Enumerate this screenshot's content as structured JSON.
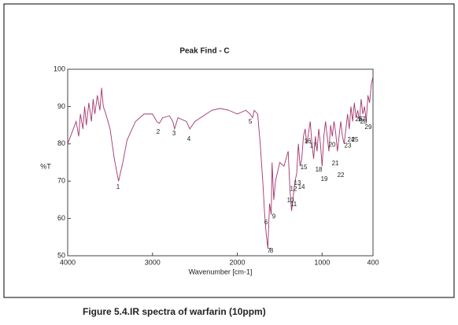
{
  "chart_data": {
    "type": "line",
    "title": "Peak Find - C",
    "x_label": "Wavenumber [cm-1]",
    "y_label": "%T",
    "caption": "Figure 5.4.IR spectra of warfarin (10ppm)",
    "xlim": [
      4000,
      400
    ],
    "ylim": [
      50,
      100
    ],
    "xticks": [
      4000,
      3000,
      2000,
      1000,
      400
    ],
    "yticks": [
      50,
      60,
      70,
      80,
      90,
      100
    ],
    "series": [
      {
        "color": "#a3346e",
        "x": [
          4000,
          3950,
          3900,
          3870,
          3850,
          3820,
          3800,
          3780,
          3750,
          3720,
          3700,
          3680,
          3650,
          3620,
          3600,
          3580,
          3550,
          3500,
          3450,
          3400,
          3350,
          3300,
          3200,
          3100,
          3000,
          2950,
          2920,
          2880,
          2800,
          2760,
          2740,
          2700,
          2600,
          2560,
          2500,
          2400,
          2300,
          2200,
          2100,
          2000,
          1900,
          1850,
          1820,
          1800,
          1760,
          1730,
          1700,
          1680,
          1660,
          1640,
          1630,
          1620,
          1600,
          1590,
          1570,
          1550,
          1500,
          1450,
          1400,
          1380,
          1360,
          1340,
          1320,
          1300,
          1280,
          1260,
          1240,
          1220,
          1200,
          1180,
          1160,
          1140,
          1120,
          1100,
          1080,
          1060,
          1040,
          1020,
          1000,
          980,
          960,
          940,
          920,
          900,
          880,
          860,
          840,
          820,
          800,
          780,
          760,
          740,
          720,
          700,
          680,
          660,
          640,
          620,
          600,
          580,
          560,
          540,
          520,
          500,
          480,
          460,
          440,
          420,
          400
        ],
        "values": [
          80,
          83,
          86,
          82,
          88,
          84,
          90,
          85,
          91,
          86,
          92,
          88,
          93,
          89,
          95,
          90,
          88,
          84,
          76,
          70,
          75,
          81,
          86,
          88,
          88,
          86,
          85.5,
          87,
          87.5,
          86,
          84,
          87,
          86,
          84,
          86,
          87.5,
          89,
          89.5,
          89,
          88,
          89,
          88,
          87,
          89,
          88,
          80,
          70,
          62,
          56,
          52,
          58,
          64,
          61,
          75,
          65,
          70,
          75,
          74,
          78,
          68,
          62,
          66,
          70,
          72,
          80,
          74,
          76,
          82,
          84,
          80,
          83,
          86,
          80,
          76,
          82,
          78,
          84,
          80,
          74,
          82,
          86,
          82,
          78,
          85,
          82,
          86,
          83,
          78,
          82,
          86,
          82,
          80,
          84,
          88,
          84,
          90,
          86,
          91,
          87,
          89,
          86,
          92,
          88,
          90,
          86,
          93,
          91,
          96,
          98
        ]
      }
    ],
    "annotations": [
      {
        "label": "1",
        "x": 3406,
        "y": 68.4
      },
      {
        "label": "2",
        "x": 2933,
        "y": 83.1
      },
      {
        "label": "3",
        "x": 2747,
        "y": 82.7
      },
      {
        "label": "4",
        "x": 2571,
        "y": 81.2
      },
      {
        "label": "5",
        "x": 1847,
        "y": 85.9
      },
      {
        "label": "6",
        "x": 1662,
        "y": 58.9
      },
      {
        "label": "7",
        "x": 1625,
        "y": 51.3
      },
      {
        "label": "8",
        "x": 1597,
        "y": 51.3
      },
      {
        "label": "9",
        "x": 1569,
        "y": 60.5
      },
      {
        "label": "10",
        "x": 1374,
        "y": 64.8
      },
      {
        "label": "11",
        "x": 1337,
        "y": 63.7
      },
      {
        "label": "12",
        "x": 1337,
        "y": 67.9
      },
      {
        "label": "13",
        "x": 1291,
        "y": 69.4
      },
      {
        "label": "14",
        "x": 1244,
        "y": 68.4
      },
      {
        "label": "15",
        "x": 1216,
        "y": 73.6
      },
      {
        "label": "16",
        "x": 1170,
        "y": 80.6
      },
      {
        "label": "17",
        "x": 1105,
        "y": 79.5
      },
      {
        "label": "18",
        "x": 1040,
        "y": 73.0
      },
      {
        "label": "19",
        "x": 975,
        "y": 70.5
      },
      {
        "label": "20",
        "x": 882,
        "y": 79.7
      },
      {
        "label": "21",
        "x": 845,
        "y": 74.7
      },
      {
        "label": "22",
        "x": 780,
        "y": 71.5
      },
      {
        "label": "23",
        "x": 697,
        "y": 79.5
      },
      {
        "label": "24",
        "x": 660,
        "y": 81.0
      },
      {
        "label": "25",
        "x": 613,
        "y": 81.0
      },
      {
        "label": "26",
        "x": 567,
        "y": 86.5
      },
      {
        "label": "27",
        "x": 530,
        "y": 86.5
      },
      {
        "label": "28",
        "x": 511,
        "y": 85.9
      },
      {
        "label": "29",
        "x": 456,
        "y": 84.4
      }
    ]
  }
}
